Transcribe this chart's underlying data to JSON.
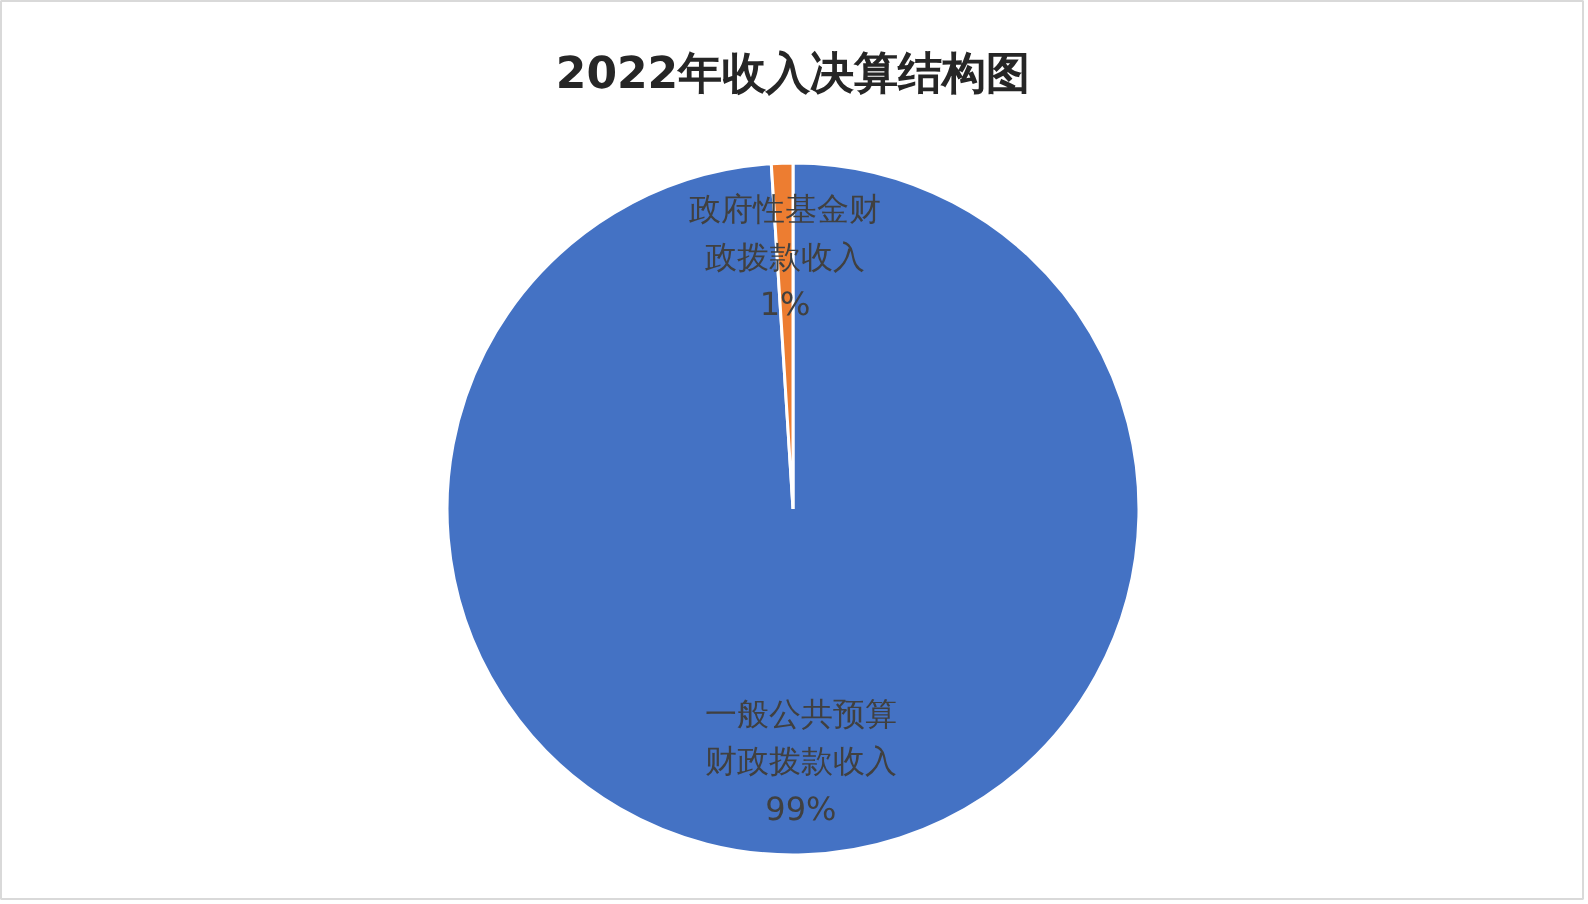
{
  "chart_data": {
    "type": "pie",
    "title": "2022年收入决算结构图",
    "categories": [
      "一般公共预算财政拨款收入",
      "政府性基金财政拨款收入"
    ],
    "values": [
      99,
      1
    ],
    "colors": [
      "#4472c4",
      "#ed7d31"
    ],
    "value_labels": [
      "99%",
      "1%"
    ]
  }
}
